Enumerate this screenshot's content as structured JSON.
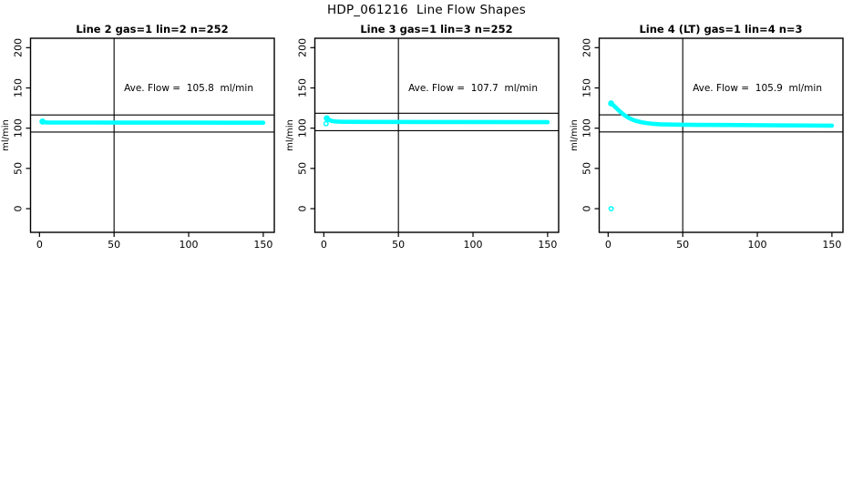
{
  "main_title": "HDP_061216  Line Flow Shapes",
  "colors": {
    "marker": "#00ffff",
    "axis": "#000000",
    "text": "#000000",
    "background": "#ffffff"
  },
  "chart_data": [
    {
      "type": "scatter",
      "title": "Line 2 gas=1 lin=2 n=252",
      "annotation": "Ave. Flow =  105.8  ml/min",
      "ave_flow_ml_min": 105.8,
      "ylabel": "ml/min",
      "x_ticks": [
        0,
        50,
        100,
        150
      ],
      "y_ticks": [
        0,
        50,
        100,
        150,
        200
      ],
      "xlim": [
        -6,
        157.4
      ],
      "ylim": [
        -29.4,
        211.7
      ],
      "vline_x": 50,
      "hlines": [
        116.4,
        95.2
      ],
      "annotation_xy": [
        100,
        150
      ],
      "marker": "open-circle-cyan",
      "points_shape": [
        [
          2,
          108.2
        ],
        [
          3,
          107.3
        ],
        [
          6,
          107.0
        ],
        [
          40,
          107.0
        ],
        [
          100,
          106.9
        ],
        [
          150,
          106.8
        ]
      ],
      "extra_points": []
    },
    {
      "type": "scatter",
      "title": "Line 3 gas=1 lin=3 n=252",
      "annotation": "Ave. Flow =  107.7  ml/min",
      "ave_flow_ml_min": 107.7,
      "ylabel": "ml/min",
      "x_ticks": [
        0,
        50,
        100,
        150
      ],
      "y_ticks": [
        0,
        50,
        100,
        150,
        200
      ],
      "xlim": [
        -6,
        157.4
      ],
      "ylim": [
        -29.4,
        211.7
      ],
      "vline_x": 50,
      "hlines": [
        118.5,
        96.9
      ],
      "annotation_xy": [
        100,
        150
      ],
      "marker": "open-circle-cyan",
      "points_shape": [
        [
          2,
          112.2
        ],
        [
          3,
          110.8
        ],
        [
          4,
          109.8
        ],
        [
          6,
          108.7
        ],
        [
          9,
          108.2
        ],
        [
          13,
          107.9
        ],
        [
          30,
          107.8
        ],
        [
          80,
          107.7
        ],
        [
          150,
          107.5
        ]
      ],
      "extra_points": [
        [
          1.5,
          105.6
        ]
      ]
    },
    {
      "type": "scatter",
      "title": "Line 4 (LT) gas=1 lin=4 n=3",
      "annotation": "Ave. Flow =  105.9  ml/min",
      "ave_flow_ml_min": 105.9,
      "ylabel": "ml/min",
      "x_ticks": [
        0,
        50,
        100,
        150
      ],
      "y_ticks": [
        0,
        50,
        100,
        150,
        200
      ],
      "xlim": [
        -6,
        157.4
      ],
      "ylim": [
        -29.4,
        211.7
      ],
      "vline_x": 50,
      "hlines": [
        116.5,
        95.3
      ],
      "annotation_xy": [
        100,
        150
      ],
      "marker": "open-circle-cyan",
      "points_shape": [
        [
          2,
          130.8
        ],
        [
          3,
          129.3
        ],
        [
          4,
          127.6
        ],
        [
          5,
          125.9
        ],
        [
          6,
          124.1
        ],
        [
          8,
          120.6
        ],
        [
          10,
          117.4
        ],
        [
          12,
          114.8
        ],
        [
          14,
          112.6
        ],
        [
          16,
          110.8
        ],
        [
          18,
          109.4
        ],
        [
          20,
          108.3
        ],
        [
          23,
          107.1
        ],
        [
          26,
          106.3
        ],
        [
          30,
          105.4
        ],
        [
          35,
          104.9
        ],
        [
          45,
          104.4
        ],
        [
          60,
          104.1
        ],
        [
          80,
          103.9
        ],
        [
          110,
          103.6
        ],
        [
          150,
          103.2
        ]
      ],
      "extra_points": [
        [
          2,
          0
        ]
      ]
    }
  ]
}
